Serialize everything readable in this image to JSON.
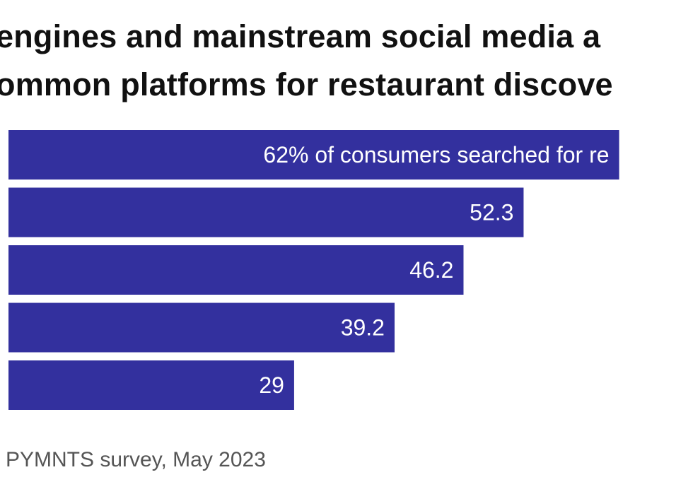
{
  "colors": {
    "bar": "#33309E",
    "bar_label": "#ffffff",
    "title": "#111111",
    "source": "#555555"
  },
  "chart_data": {
    "type": "bar",
    "orientation": "horizontal",
    "title_lines": [
      "engines and mainstream social media a",
      "ommon platforms for restaurant discove"
    ],
    "categories": [
      "",
      "",
      "",
      "",
      ""
    ],
    "values": [
      62,
      52.3,
      46.2,
      39.2,
      29
    ],
    "data_labels": [
      "62% of consumers searched for re",
      "52.3",
      "46.2",
      "39.2",
      "29"
    ],
    "unit": "%",
    "xlim": [
      0,
      69.5
    ],
    "xlabel": "",
    "ylabel": "",
    "grid": false,
    "legend": "none"
  },
  "source": "PYMNTS survey, May 2023"
}
